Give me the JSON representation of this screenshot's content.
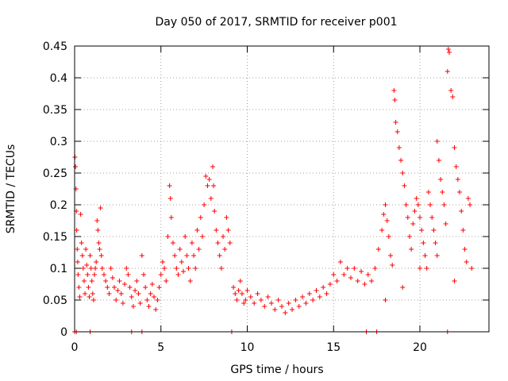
{
  "chart_data": {
    "type": "scatter",
    "title": "Day 050 of 2017, SRMTID for receiver p001",
    "xlabel": "GPS time / hours",
    "ylabel": "SRMTID / TECUs",
    "xlim": [
      0,
      24
    ],
    "ylim": [
      0,
      0.45
    ],
    "xticks": [
      0,
      5,
      10,
      15,
      20
    ],
    "xtick_labels": [
      "0",
      "5",
      "10",
      "15",
      "20"
    ],
    "yticks": [
      0,
      0.05,
      0.1,
      0.15,
      0.2,
      0.25,
      0.3,
      0.35,
      0.4,
      0.45
    ],
    "ytick_labels": [
      "0",
      "0.05",
      "0.1",
      "0.15",
      "0.2",
      "0.25",
      "0.3",
      "0.35",
      "0.4",
      "0.45"
    ],
    "grid": true,
    "marker": "+",
    "color": "#ff0000",
    "series": [
      {
        "name": "SRMTID",
        "points": [
          [
            0.02,
            0.275
          ],
          [
            0.05,
            0.26
          ],
          [
            0.08,
            0.225
          ],
          [
            0.1,
            0.19
          ],
          [
            0.12,
            0.16
          ],
          [
            0.15,
            0.13
          ],
          [
            0.18,
            0.11
          ],
          [
            0.2,
            0.09
          ],
          [
            0.25,
            0.07
          ],
          [
            0.3,
            0.055
          ],
          [
            0.35,
            0.185
          ],
          [
            0.4,
            0.14
          ],
          [
            0.45,
            0.12
          ],
          [
            0.5,
            0.1
          ],
          [
            0.55,
            0.08
          ],
          [
            0.6,
            0.06
          ],
          [
            0.65,
            0.13
          ],
          [
            0.7,
            0.105
          ],
          [
            0.75,
            0.09
          ],
          [
            0.8,
            0.07
          ],
          [
            0.85,
            0.055
          ],
          [
            0.9,
            0.12
          ],
          [
            0.95,
            0.1
          ],
          [
            1.0,
            0.08
          ],
          [
            1.05,
            0.06
          ],
          [
            1.1,
            0.05
          ],
          [
            1.15,
            0.09
          ],
          [
            1.2,
            0.1
          ],
          [
            1.25,
            0.11
          ],
          [
            1.3,
            0.175
          ],
          [
            1.35,
            0.16
          ],
          [
            1.4,
            0.14
          ],
          [
            1.45,
            0.13
          ],
          [
            1.5,
            0.195
          ],
          [
            1.55,
            0.12
          ],
          [
            1.6,
            0.1
          ],
          [
            1.7,
            0.09
          ],
          [
            1.8,
            0.08
          ],
          [
            1.9,
            0.07
          ],
          [
            2.0,
            0.06
          ],
          [
            2.1,
            0.1
          ],
          [
            2.2,
            0.085
          ],
          [
            2.3,
            0.07
          ],
          [
            2.4,
            0.05
          ],
          [
            2.5,
            0.065
          ],
          [
            2.6,
            0.08
          ],
          [
            2.7,
            0.06
          ],
          [
            2.8,
            0.045
          ],
          [
            2.9,
            0.075
          ],
          [
            3.0,
            0.1
          ],
          [
            3.1,
            0.09
          ],
          [
            3.2,
            0.07
          ],
          [
            3.3,
            0.055
          ],
          [
            3.4,
            0.04
          ],
          [
            3.5,
            0.065
          ],
          [
            3.6,
            0.08
          ],
          [
            3.7,
            0.06
          ],
          [
            3.8,
            0.045
          ],
          [
            3.9,
            0.12
          ],
          [
            4.0,
            0.09
          ],
          [
            4.1,
            0.07
          ],
          [
            4.2,
            0.05
          ],
          [
            4.3,
            0.04
          ],
          [
            4.4,
            0.06
          ],
          [
            4.5,
            0.075
          ],
          [
            4.6,
            0.055
          ],
          [
            4.7,
            0.035
          ],
          [
            4.8,
            0.05
          ],
          [
            4.9,
            0.07
          ],
          [
            5.0,
            0.09
          ],
          [
            5.1,
            0.11
          ],
          [
            5.2,
            0.1
          ],
          [
            5.3,
            0.08
          ],
          [
            5.4,
            0.15
          ],
          [
            5.5,
            0.23
          ],
          [
            5.55,
            0.21
          ],
          [
            5.6,
            0.18
          ],
          [
            5.7,
            0.14
          ],
          [
            5.8,
            0.12
          ],
          [
            5.9,
            0.1
          ],
          [
            6.0,
            0.09
          ],
          [
            6.1,
            0.13
          ],
          [
            6.2,
            0.11
          ],
          [
            6.3,
            0.095
          ],
          [
            6.4,
            0.15
          ],
          [
            6.5,
            0.12
          ],
          [
            6.6,
            0.1
          ],
          [
            6.7,
            0.08
          ],
          [
            6.8,
            0.14
          ],
          [
            6.9,
            0.12
          ],
          [
            7.0,
            0.1
          ],
          [
            7.1,
            0.16
          ],
          [
            7.2,
            0.13
          ],
          [
            7.3,
            0.18
          ],
          [
            7.4,
            0.15
          ],
          [
            7.5,
            0.2
          ],
          [
            7.6,
            0.245
          ],
          [
            7.7,
            0.23
          ],
          [
            7.8,
            0.24
          ],
          [
            7.9,
            0.21
          ],
          [
            8.0,
            0.26
          ],
          [
            8.05,
            0.23
          ],
          [
            8.1,
            0.19
          ],
          [
            8.2,
            0.16
          ],
          [
            8.3,
            0.14
          ],
          [
            8.4,
            0.12
          ],
          [
            8.5,
            0.1
          ],
          [
            8.6,
            0.15
          ],
          [
            8.7,
            0.13
          ],
          [
            8.8,
            0.18
          ],
          [
            8.9,
            0.16
          ],
          [
            9.0,
            0.14
          ],
          [
            9.2,
            0.07
          ],
          [
            9.3,
            0.06
          ],
          [
            9.4,
            0.05
          ],
          [
            9.5,
            0.065
          ],
          [
            9.6,
            0.08
          ],
          [
            9.7,
            0.06
          ],
          [
            9.8,
            0.045
          ],
          [
            9.9,
            0.05
          ],
          [
            10.0,
            0.065
          ],
          [
            10.2,
            0.055
          ],
          [
            10.4,
            0.045
          ],
          [
            10.6,
            0.06
          ],
          [
            10.8,
            0.05
          ],
          [
            11.0,
            0.04
          ],
          [
            11.2,
            0.055
          ],
          [
            11.4,
            0.045
          ],
          [
            11.6,
            0.035
          ],
          [
            11.8,
            0.05
          ],
          [
            12.0,
            0.04
          ],
          [
            12.2,
            0.03
          ],
          [
            12.4,
            0.045
          ],
          [
            12.6,
            0.035
          ],
          [
            12.8,
            0.05
          ],
          [
            13.0,
            0.04
          ],
          [
            13.2,
            0.055
          ],
          [
            13.4,
            0.045
          ],
          [
            13.6,
            0.06
          ],
          [
            13.8,
            0.05
          ],
          [
            14.0,
            0.065
          ],
          [
            14.2,
            0.055
          ],
          [
            14.4,
            0.07
          ],
          [
            14.6,
            0.06
          ],
          [
            14.8,
            0.075
          ],
          [
            15.0,
            0.09
          ],
          [
            15.2,
            0.08
          ],
          [
            15.4,
            0.11
          ],
          [
            15.6,
            0.09
          ],
          [
            15.8,
            0.1
          ],
          [
            16.0,
            0.085
          ],
          [
            16.2,
            0.1
          ],
          [
            16.4,
            0.08
          ],
          [
            16.6,
            0.095
          ],
          [
            16.8,
            0.075
          ],
          [
            17.0,
            0.09
          ],
          [
            17.2,
            0.08
          ],
          [
            17.4,
            0.1
          ],
          [
            17.6,
            0.13
          ],
          [
            17.8,
            0.16
          ],
          [
            17.9,
            0.185
          ],
          [
            18.0,
            0.2
          ],
          [
            18.1,
            0.175
          ],
          [
            18.2,
            0.15
          ],
          [
            18.3,
            0.12
          ],
          [
            18.4,
            0.105
          ],
          [
            18.5,
            0.38
          ],
          [
            18.55,
            0.365
          ],
          [
            18.6,
            0.33
          ],
          [
            18.7,
            0.315
          ],
          [
            18.8,
            0.29
          ],
          [
            18.9,
            0.27
          ],
          [
            19.0,
            0.25
          ],
          [
            19.1,
            0.23
          ],
          [
            19.2,
            0.2
          ],
          [
            19.3,
            0.18
          ],
          [
            19.4,
            0.15
          ],
          [
            19.5,
            0.13
          ],
          [
            19.6,
            0.17
          ],
          [
            19.7,
            0.19
          ],
          [
            19.8,
            0.21
          ],
          [
            19.9,
            0.2
          ],
          [
            20.0,
            0.18
          ],
          [
            20.1,
            0.16
          ],
          [
            20.2,
            0.14
          ],
          [
            20.3,
            0.12
          ],
          [
            20.4,
            0.1
          ],
          [
            20.5,
            0.22
          ],
          [
            20.6,
            0.2
          ],
          [
            20.7,
            0.18
          ],
          [
            20.8,
            0.16
          ],
          [
            20.9,
            0.14
          ],
          [
            21.0,
            0.3
          ],
          [
            21.1,
            0.27
          ],
          [
            21.2,
            0.24
          ],
          [
            21.3,
            0.22
          ],
          [
            21.4,
            0.2
          ],
          [
            21.5,
            0.17
          ],
          [
            21.6,
            0.41
          ],
          [
            21.65,
            0.445
          ],
          [
            21.7,
            0.44
          ],
          [
            21.8,
            0.38
          ],
          [
            21.9,
            0.37
          ],
          [
            22.0,
            0.29
          ],
          [
            22.1,
            0.26
          ],
          [
            22.2,
            0.24
          ],
          [
            22.3,
            0.22
          ],
          [
            22.4,
            0.19
          ],
          [
            22.5,
            0.16
          ],
          [
            22.6,
            0.13
          ],
          [
            22.7,
            0.11
          ],
          [
            22.8,
            0.21
          ],
          [
            22.9,
            0.2
          ],
          [
            23.0,
            0.1
          ],
          [
            18.0,
            0.05
          ],
          [
            19.0,
            0.07
          ],
          [
            20.0,
            0.1
          ],
          [
            21.0,
            0.12
          ],
          [
            22.0,
            0.08
          ],
          [
            17.5,
            0.0
          ],
          [
            0.0,
            0.0
          ],
          [
            0.1,
            0.0
          ],
          [
            0.9,
            0.0
          ],
          [
            3.3,
            0.0
          ],
          [
            3.9,
            0.0
          ],
          [
            9.1,
            0.0
          ],
          [
            16.9,
            0.0
          ],
          [
            21.6,
            0.0
          ]
        ]
      }
    ]
  }
}
